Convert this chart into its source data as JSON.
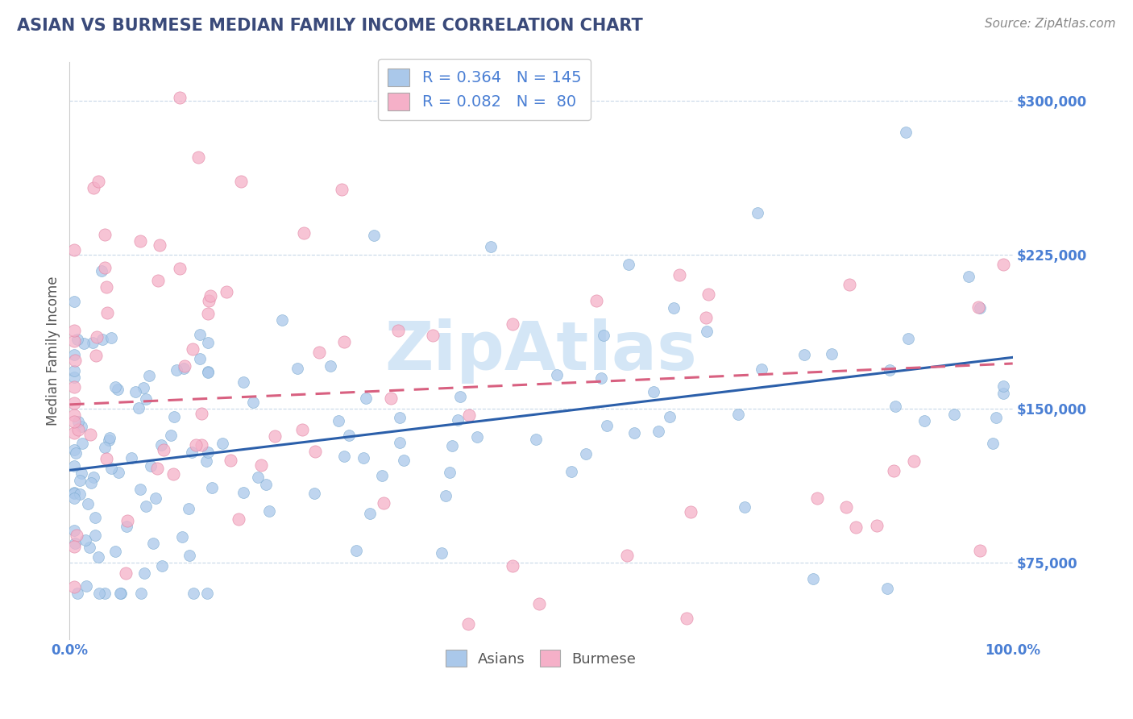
{
  "title": "ASIAN VS BURMESE MEDIAN FAMILY INCOME CORRELATION CHART",
  "source": "Source: ZipAtlas.com",
  "ylabel": "Median Family Income",
  "xlim": [
    0.0,
    1.0
  ],
  "ylim": [
    37500,
    318750
  ],
  "yticks": [
    75000,
    150000,
    225000,
    300000
  ],
  "ytick_labels": [
    "$75,000",
    "$150,000",
    "$225,000",
    "$300,000"
  ],
  "xtick_labels": [
    "0.0%",
    "100.0%"
  ],
  "title_color": "#3a4a7a",
  "axis_label_color": "#4a7fd4",
  "source_color": "#888888",
  "ylabel_color": "#555555",
  "background_color": "#ffffff",
  "watermark": "ZipAtlas",
  "watermark_color": "#d0e4f5",
  "asian_fill_color": "#aac8ea",
  "asian_edge_color": "#7aaad0",
  "burmese_fill_color": "#f5b0c8",
  "burmese_edge_color": "#e080a0",
  "asian_line_color": "#2b5faa",
  "burmese_line_color": "#d86080",
  "legend_text_color": "#4a7fd4",
  "legend_R_asian": "0.364",
  "legend_N_asian": "145",
  "legend_R_burmese": "0.082",
  "legend_N_burmese": " 80",
  "grid_color": "#c8d8e8",
  "title_fontsize": 15,
  "source_fontsize": 11,
  "tick_fontsize": 12,
  "legend_fontsize": 14,
  "ylabel_fontsize": 12,
  "watermark_fontsize": 60,
  "asian_marker_size": 100,
  "burmese_marker_size": 120
}
